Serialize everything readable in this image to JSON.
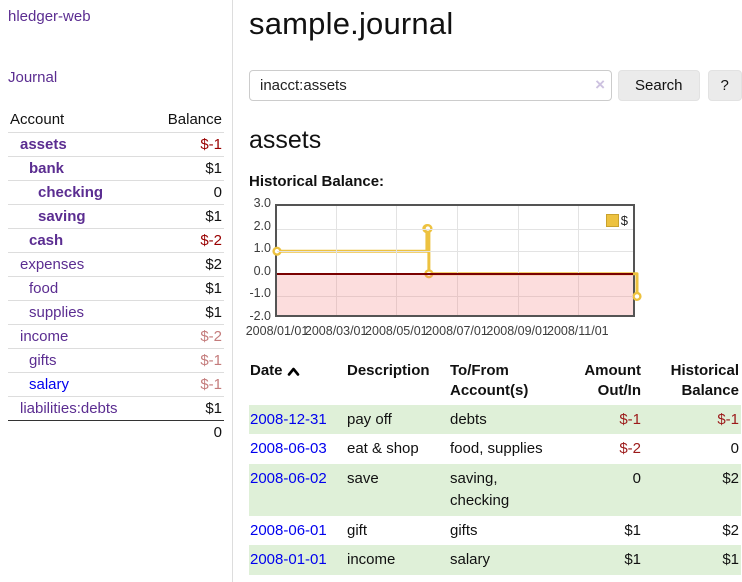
{
  "sidebar": {
    "app_title": "hledger-web",
    "journal_link": "Journal",
    "accounts_table": {
      "headers": {
        "account": "Account",
        "balance": "Balance"
      },
      "rows": [
        {
          "name": "assets",
          "depth": 1,
          "in_account": true,
          "link_color": "purple",
          "balance": "$-1",
          "balance_tone": "neg-strong"
        },
        {
          "name": "bank",
          "depth": 2,
          "in_account": true,
          "link_color": "purple",
          "balance": "$1",
          "balance_tone": "normal"
        },
        {
          "name": "checking",
          "depth": 3,
          "in_account": true,
          "link_color": "purple",
          "balance": "0",
          "balance_tone": "normal"
        },
        {
          "name": "saving",
          "depth": 3,
          "in_account": true,
          "link_color": "purple",
          "balance": "$1",
          "balance_tone": "normal"
        },
        {
          "name": "cash",
          "depth": 2,
          "in_account": true,
          "link_color": "purple",
          "balance": "$-2",
          "balance_tone": "neg-strong"
        },
        {
          "name": "expenses",
          "depth": 1,
          "in_account": false,
          "link_color": "purple",
          "balance": "$2",
          "balance_tone": "normal"
        },
        {
          "name": "food",
          "depth": 2,
          "in_account": false,
          "link_color": "purple",
          "balance": "$1",
          "balance_tone": "normal"
        },
        {
          "name": "supplies",
          "depth": 2,
          "in_account": false,
          "link_color": "purple",
          "balance": "$1",
          "balance_tone": "normal"
        },
        {
          "name": "income",
          "depth": 1,
          "in_account": false,
          "link_color": "purple",
          "balance": "$-2",
          "balance_tone": "neg-soft"
        },
        {
          "name": "gifts",
          "depth": 2,
          "in_account": false,
          "link_color": "purple",
          "balance": "$-1",
          "balance_tone": "neg-soft"
        },
        {
          "name": "salary",
          "depth": 2,
          "in_account": false,
          "link_color": "blue",
          "balance": "$-1",
          "balance_tone": "neg-soft"
        },
        {
          "name": "liabilities:debts",
          "depth": 1,
          "in_account": false,
          "link_color": "purple",
          "balance": "$1",
          "balance_tone": "normal"
        }
      ],
      "total": "0"
    }
  },
  "header": {
    "title": "sample.journal"
  },
  "search": {
    "query": "inacct:assets",
    "clear_icon": "×",
    "search_button": "Search",
    "help_button": "?"
  },
  "account_page": {
    "heading": "assets",
    "chart_label": "Historical Balance:"
  },
  "chart_data": {
    "type": "line",
    "title": "Historical Balance",
    "step": true,
    "series": [
      {
        "name": "$",
        "color": "#edc240",
        "points": [
          [
            "2008/01/01",
            1
          ],
          [
            "2008/06/01",
            2
          ],
          [
            "2008/06/02",
            2
          ],
          [
            "2008/06/03",
            0
          ],
          [
            "2008/12/31",
            -1
          ]
        ]
      }
    ],
    "x_range": [
      "2008/01/01",
      "2008/12/31"
    ],
    "x_ticks": [
      "2008/01/01",
      "2008/03/01",
      "2008/05/01",
      "2008/07/01",
      "2008/09/01",
      "2008/11/01"
    ],
    "y_ticks": [
      3.0,
      2.0,
      1.0,
      0.0,
      -1.0,
      -2.0
    ],
    "ylim": [
      -2,
      3
    ],
    "grid": true,
    "negative_region": true,
    "zero_line_color": "#7a0000",
    "legend": {
      "label": "$",
      "position": "top-right"
    }
  },
  "register_table": {
    "headers": {
      "date": "Date",
      "description": "Description",
      "accounts": "To/From Account(s)",
      "amount": "Amount Out/In",
      "balance": "Historical Balance"
    },
    "rows": [
      {
        "date": "2008-12-31",
        "description": "pay off",
        "accounts": "debts",
        "amount": "$-1",
        "amount_neg": true,
        "balance": "$-1",
        "balance_neg": true,
        "highlight": true
      },
      {
        "date": "2008-06-03",
        "description": "eat & shop",
        "accounts": "food, supplies",
        "amount": "$-2",
        "amount_neg": true,
        "balance": "0",
        "balance_neg": false,
        "highlight": false
      },
      {
        "date": "2008-06-02",
        "description": "save",
        "accounts": "saving, checking",
        "amount": "0",
        "amount_neg": false,
        "balance": "$2",
        "balance_neg": false,
        "highlight": true
      },
      {
        "date": "2008-06-01",
        "description": "gift",
        "accounts": "gifts",
        "amount": "$1",
        "amount_neg": false,
        "balance": "$2",
        "balance_neg": false,
        "highlight": false
      },
      {
        "date": "2008-01-01",
        "description": "income",
        "accounts": "salary",
        "amount": "$1",
        "amount_neg": false,
        "balance": "$1",
        "balance_neg": false,
        "highlight": true
      }
    ]
  }
}
